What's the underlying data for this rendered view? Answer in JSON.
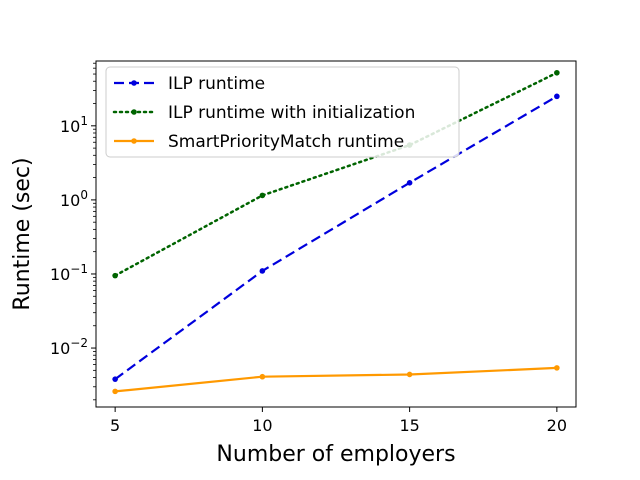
{
  "chart_data": {
    "type": "line",
    "xlabel": "Number of employers",
    "ylabel": "Runtime (sec)",
    "yscale": "log",
    "x": [
      5,
      10,
      15,
      20
    ],
    "xticks": [
      "5",
      "10",
      "15",
      "20"
    ],
    "yticks": [
      {
        "value": 0.01,
        "base": "10",
        "exp": "−2"
      },
      {
        "value": 0.1,
        "base": "10",
        "exp": "−1"
      },
      {
        "value": 1,
        "base": "10",
        "exp": "0"
      },
      {
        "value": 10,
        "base": "10",
        "exp": "1"
      }
    ],
    "xlim": [
      4.35,
      20.65
    ],
    "ylim": [
      0.0016,
      75
    ],
    "grid": false,
    "legend_position": "top-left",
    "series": [
      {
        "name": "ILP runtime",
        "values": [
          0.0038,
          0.11,
          1.7,
          25
        ],
        "color": "#0000dd",
        "style": "dashed"
      },
      {
        "name": "ILP runtime with initialization",
        "values": [
          0.095,
          1.15,
          5.5,
          52
        ],
        "color": "#006400",
        "style": "dotted"
      },
      {
        "name": "SmartPriorityMatch runtime",
        "values": [
          0.0026,
          0.0041,
          0.0044,
          0.0054
        ],
        "color": "#ff9900",
        "style": "solid"
      }
    ]
  }
}
